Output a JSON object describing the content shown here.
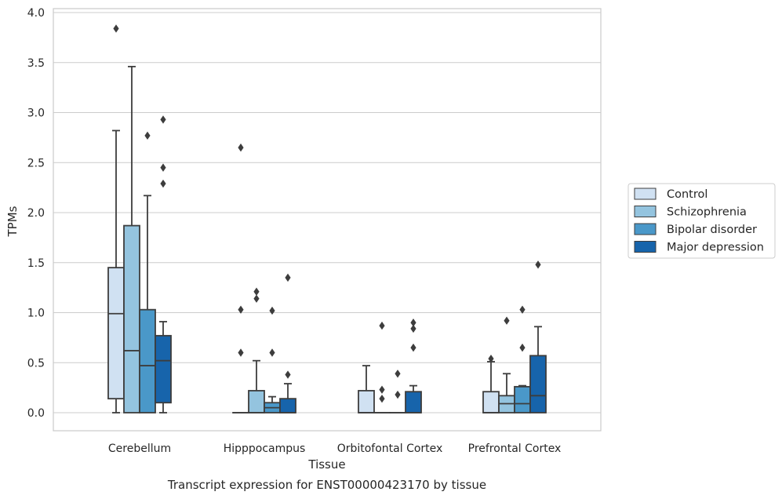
{
  "chart_data": {
    "type": "boxplot",
    "title": "Transcript expression for ENST00000423170 by tissue",
    "xlabel": "Tissue",
    "ylabel": "TPMs",
    "ylim": [
      -0.18,
      4.05
    ],
    "yticks": [
      "0.0",
      "0.5",
      "1.0",
      "1.5",
      "2.0",
      "2.5",
      "3.0",
      "3.5",
      "4.0"
    ],
    "ytick_values": [
      0,
      0.5,
      1.0,
      1.5,
      2.0,
      2.5,
      3.0,
      3.5,
      4.0
    ],
    "grid": "horizontal",
    "legend_position": "right",
    "categories": [
      "Cerebellum",
      "Hipppocampus",
      "Orbitofontal Cortex",
      "Prefrontal Cortex"
    ],
    "series": [
      {
        "name": "Control",
        "color": "#d0e1f2",
        "boxes": [
          {
            "whisker_low": 0.0,
            "q1": 0.14,
            "median": 0.99,
            "q3": 1.45,
            "whisker_high": 2.82,
            "outliers": [
              3.84
            ]
          },
          {
            "whisker_low": 0.0,
            "q1": 0.0,
            "median": 0.0,
            "q3": 0.0,
            "whisker_high": 0.0,
            "outliers": [
              0.6,
              1.03,
              2.65
            ]
          },
          {
            "whisker_low": 0.0,
            "q1": 0.0,
            "median": 0.0,
            "q3": 0.22,
            "whisker_high": 0.47,
            "outliers": []
          },
          {
            "whisker_low": 0.0,
            "q1": 0.0,
            "median": 0.0,
            "q3": 0.21,
            "whisker_high": 0.51,
            "outliers": [
              0.54
            ]
          }
        ]
      },
      {
        "name": "Schizophrenia",
        "color": "#94c4df",
        "boxes": [
          {
            "whisker_low": 0.0,
            "q1": 0.0,
            "median": 0.62,
            "q3": 1.87,
            "whisker_high": 3.46,
            "outliers": []
          },
          {
            "whisker_low": 0.0,
            "q1": 0.0,
            "median": 0.0,
            "q3": 0.22,
            "whisker_high": 0.52,
            "outliers": [
              1.14,
              1.21
            ]
          },
          {
            "whisker_low": 0.0,
            "q1": 0.0,
            "median": 0.0,
            "q3": 0.0,
            "whisker_high": 0.0,
            "outliers": [
              0.14,
              0.23,
              0.87
            ]
          },
          {
            "whisker_low": 0.0,
            "q1": 0.0,
            "median": 0.09,
            "q3": 0.17,
            "whisker_high": 0.39,
            "outliers": [
              0.92
            ]
          }
        ]
      },
      {
        "name": "Bipolar disorder",
        "color": "#4a98c9",
        "boxes": [
          {
            "whisker_low": 0.0,
            "q1": 0.0,
            "median": 0.47,
            "q3": 1.03,
            "whisker_high": 2.17,
            "outliers": [
              2.77
            ]
          },
          {
            "whisker_low": 0.0,
            "q1": 0.0,
            "median": 0.05,
            "q3": 0.1,
            "whisker_high": 0.16,
            "outliers": [
              0.6,
              1.02
            ]
          },
          {
            "whisker_low": 0.0,
            "q1": 0.0,
            "median": 0.0,
            "q3": 0.0,
            "whisker_high": 0.0,
            "outliers": [
              0.18,
              0.39
            ]
          },
          {
            "whisker_low": 0.0,
            "q1": 0.0,
            "median": 0.09,
            "q3": 0.26,
            "whisker_high": 0.27,
            "outliers": [
              0.65,
              1.03
            ]
          }
        ]
      },
      {
        "name": "Major depression",
        "color": "#1764ab",
        "boxes": [
          {
            "whisker_low": 0.0,
            "q1": 0.1,
            "median": 0.52,
            "q3": 0.77,
            "whisker_high": 0.91,
            "outliers": [
              2.29,
              2.45,
              2.93
            ]
          },
          {
            "whisker_low": 0.0,
            "q1": 0.0,
            "median": 0.0,
            "q3": 0.14,
            "whisker_high": 0.29,
            "outliers": [
              0.38,
              1.35
            ]
          },
          {
            "whisker_low": 0.0,
            "q1": 0.0,
            "median": 0.0,
            "q3": 0.21,
            "whisker_high": 0.27,
            "outliers": [
              0.65,
              0.84,
              0.9
            ]
          },
          {
            "whisker_low": 0.0,
            "q1": 0.0,
            "median": 0.17,
            "q3": 0.57,
            "whisker_high": 0.86,
            "outliers": [
              1.48
            ]
          }
        ]
      }
    ]
  }
}
